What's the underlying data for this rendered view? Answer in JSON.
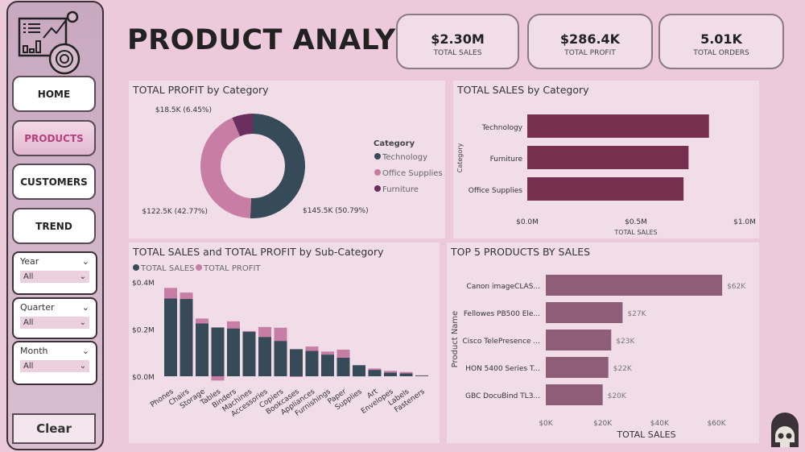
{
  "nav": {
    "home": "HOME",
    "products": "PRODUCTS",
    "customers": "CUSTOMERS",
    "trend": "TREND",
    "clear": "Clear"
  },
  "slicers": [
    {
      "label": "Year",
      "value": "All"
    },
    {
      "label": "Quarter",
      "value": "All"
    },
    {
      "label": "Month",
      "value": "All"
    }
  ],
  "title": "PRODUCT ANALYSIS",
  "kpis": [
    {
      "value": "$2.30M",
      "label": "TOTAL SALES"
    },
    {
      "value": "$286.4K",
      "label": "TOTAL PROFIT"
    },
    {
      "value": "5.01K",
      "label": "TOTAL ORDERS"
    }
  ],
  "colors": {
    "technology": "#364b57",
    "office_supplies": "#c87da5",
    "furniture": "#6a2f5e",
    "sales_bar": "#76304f",
    "top5_bar": "#8e5d78",
    "subcat_sales": "#364b57",
    "subcat_profit": "#c87da5"
  },
  "chart_data": [
    {
      "type": "pie",
      "title": "TOTAL PROFIT by Category",
      "legend_title": "Category",
      "legend_position": "right",
      "categories": [
        "Technology",
        "Office Supplies",
        "Furniture"
      ],
      "values": [
        145.5,
        122.5,
        18.5
      ],
      "labels": [
        "$145.5K (50.79%)",
        "$122.5K (42.77%)",
        "$18.5K (6.45%)"
      ],
      "unit": "K$"
    },
    {
      "type": "bar",
      "orientation": "horizontal",
      "title": "TOTAL SALES by Category",
      "categories": [
        "Technology",
        "Furniture",
        "Office Supplies"
      ],
      "values": [
        0.836,
        0.742,
        0.719
      ],
      "xlabel": "TOTAL SALES",
      "ylabel": "Category",
      "xlim": [
        0,
        1.0
      ],
      "xticks": [
        "$0.0M",
        "$0.5M",
        "$1.0M"
      ]
    },
    {
      "type": "bar",
      "stacked": true,
      "title": "TOTAL SALES and TOTAL PROFIT by Sub-Category",
      "legend_position": "top-left",
      "categories": [
        "Phones",
        "Chairs",
        "Storage",
        "Tables",
        "Binders",
        "Machines",
        "Accessories",
        "Copiers",
        "Bookcases",
        "Appliances",
        "Furnishings",
        "Paper",
        "Supplies",
        "Art",
        "Envelopes",
        "Labels",
        "Fasteners"
      ],
      "series": [
        {
          "name": "TOTAL SALES",
          "values": [
            0.33,
            0.328,
            0.224,
            0.207,
            0.203,
            0.189,
            0.167,
            0.15,
            0.115,
            0.108,
            0.092,
            0.079,
            0.047,
            0.027,
            0.016,
            0.012,
            0.003
          ]
        },
        {
          "name": "TOTAL PROFIT",
          "values": [
            0.045,
            0.027,
            0.021,
            -0.018,
            0.03,
            0.003,
            0.042,
            0.056,
            -0.003,
            0.018,
            0.013,
            0.034,
            -0.001,
            0.006,
            0.007,
            0.006,
            0.001
          ]
        }
      ],
      "ylim": [
        0,
        0.4
      ],
      "yticks": [
        "$0.0M",
        "$0.2M",
        "$0.4M"
      ]
    },
    {
      "type": "bar",
      "orientation": "horizontal",
      "title": "TOP 5 PRODUCTS BY SALES",
      "categories": [
        "Canon imageCLAS...",
        "Fellowes PB500 Ele...",
        "Cisco TelePresence ...",
        "HON 5400 Series T...",
        "GBC DocuBind TL3..."
      ],
      "values": [
        62,
        27,
        23,
        22,
        20
      ],
      "labels": [
        "$62K",
        "$27K",
        "$23K",
        "$22K",
        "$20K"
      ],
      "xlabel": "TOTAL SALES",
      "ylabel": "Product Name",
      "xlim": [
        0,
        70
      ],
      "xticks": [
        "$0K",
        "$20K",
        "$40K",
        "$60K"
      ]
    }
  ]
}
